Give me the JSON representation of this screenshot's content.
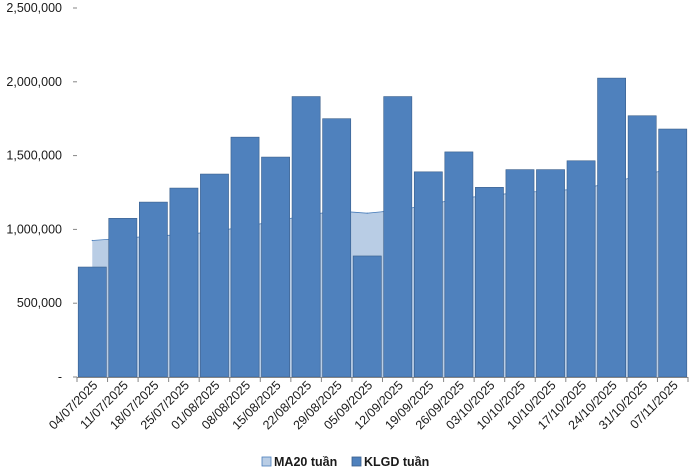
{
  "chart_data": {
    "type": "bar",
    "categories": [
      "04/07/2025",
      "11/07/2025",
      "18/07/2025",
      "25/07/2025",
      "01/08/2025",
      "08/08/2025",
      "15/08/2025",
      "22/08/2025",
      "29/08/2025",
      "05/09/2025",
      "12/09/2025",
      "19/09/2025",
      "26/09/2025",
      "03/10/2025",
      "10/10/2025",
      "10/10/2025",
      "17/10/2025",
      "24/10/2025",
      "31/10/2025",
      "07/11/2025"
    ],
    "series": [
      {
        "name": "MA20 tuần",
        "kind": "area",
        "color": "#b9cde5",
        "stroke": "#4a7ebb",
        "values": [
          925000,
          940000,
          955000,
          965000,
          985000,
          1020000,
          1055000,
          1095000,
          1125000,
          1110000,
          1130000,
          1165000,
          1210000,
          1230000,
          1250000,
          1260000,
          1275000,
          1315000,
          1370000,
          1410000
        ]
      },
      {
        "name": "KLGD tuần",
        "kind": "bar",
        "color": "#4f81bd",
        "stroke": "#385d8a",
        "values": [
          745000,
          1075000,
          1185000,
          1280000,
          1375000,
          1625000,
          1490000,
          1900000,
          1750000,
          820000,
          1900000,
          1390000,
          1525000,
          1285000,
          1405000,
          1405000,
          1465000,
          2025000,
          1770000,
          1680000
        ]
      }
    ],
    "ylim": [
      0,
      2500000
    ],
    "yticks": [
      {
        "value": 0,
        "label": "-"
      },
      {
        "value": 500000,
        "label": "500,000"
      },
      {
        "value": 1000000,
        "label": "1,000,000"
      },
      {
        "value": 1500000,
        "label": "1,500,000"
      },
      {
        "value": 2000000,
        "label": "2,000,000"
      },
      {
        "value": 2500000,
        "label": "2,500,000"
      }
    ],
    "grid": false,
    "legend_position": "bottom",
    "title": "",
    "xlabel": "",
    "ylabel": ""
  }
}
